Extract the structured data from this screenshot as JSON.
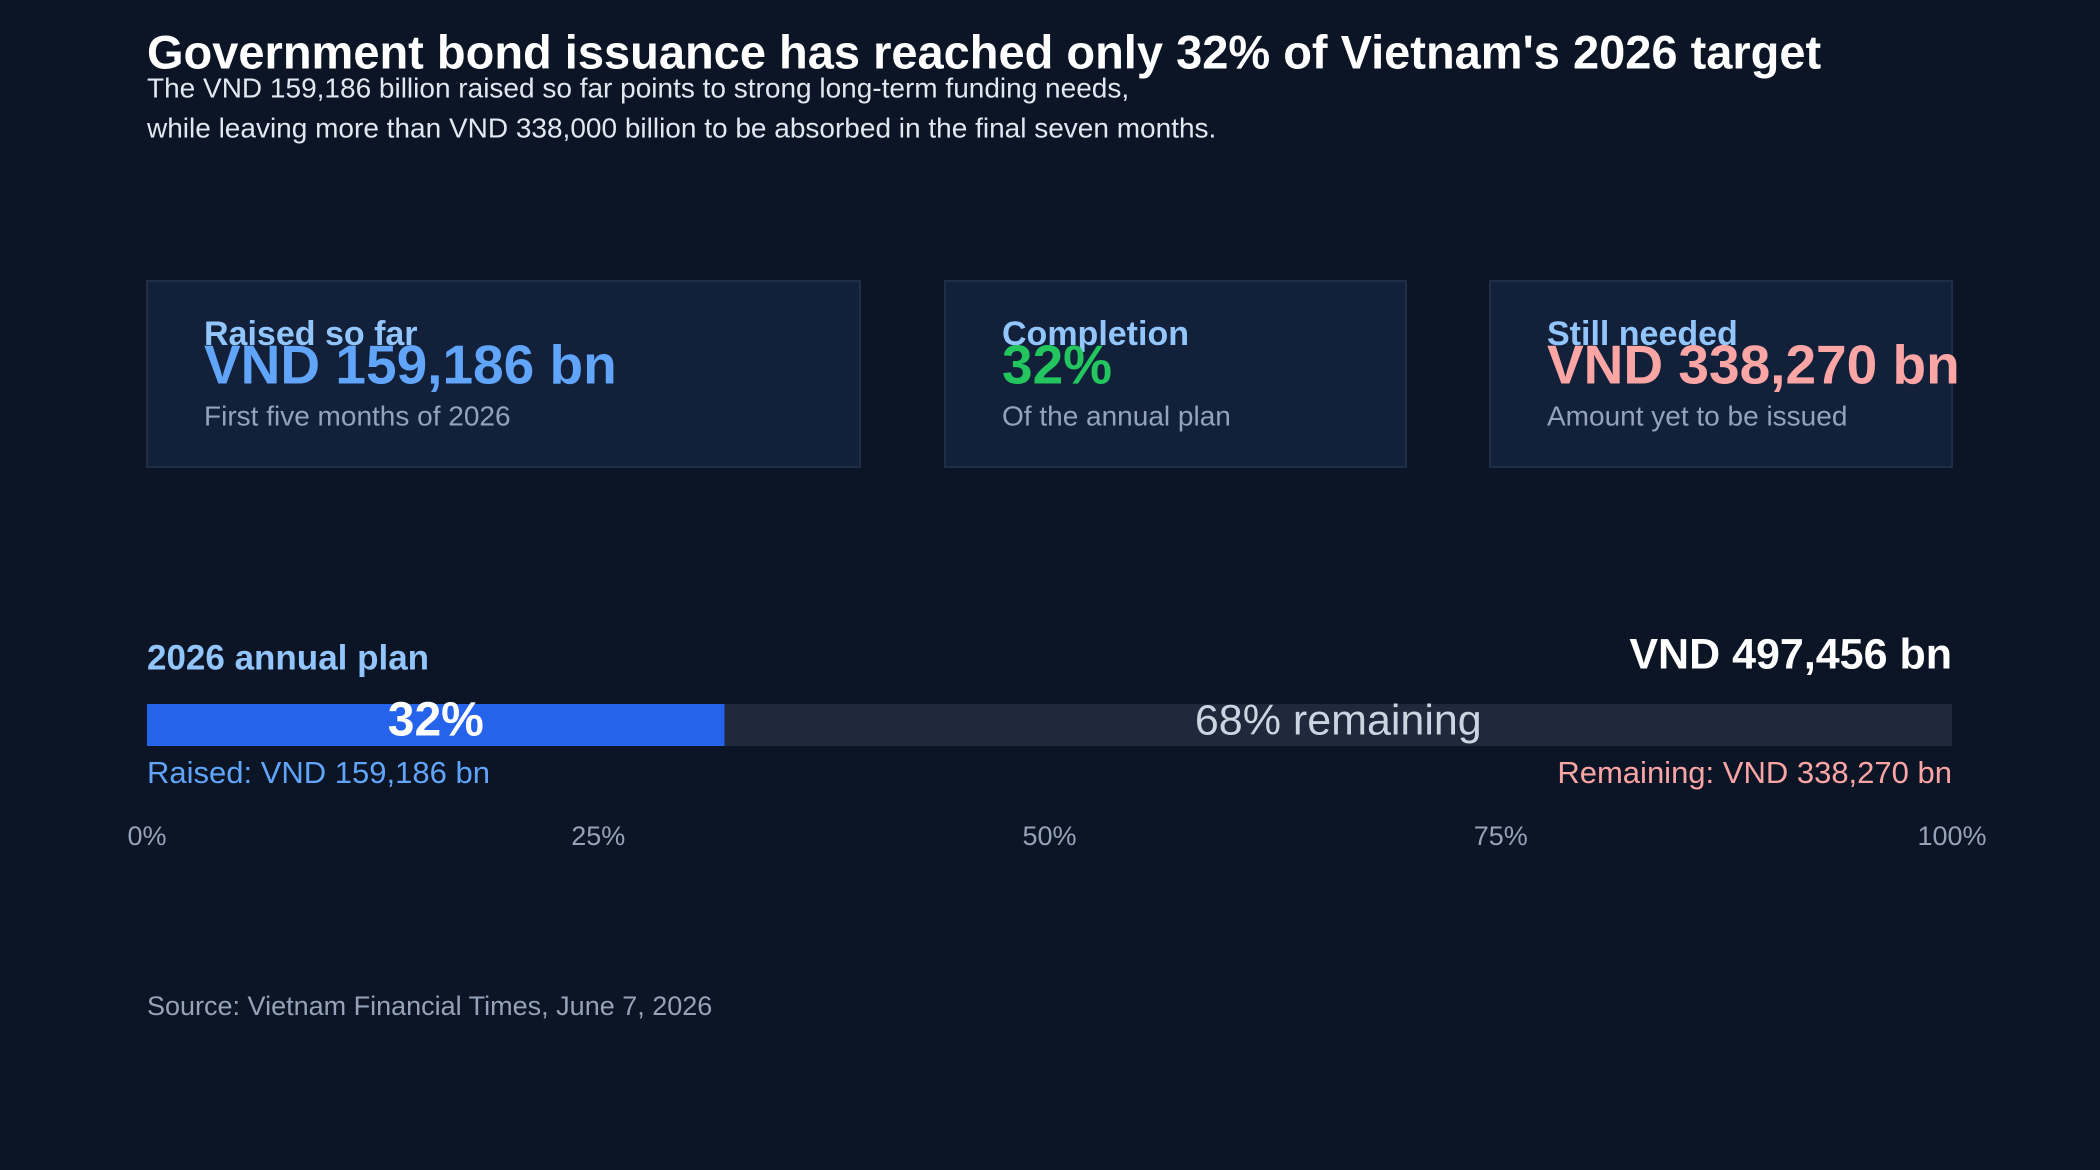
{
  "header": {
    "title": "Government bond issuance has reached only 32% of Vietnam's 2026 target",
    "subtitle": [
      "The VND 159,186 billion raised so far points to strong long-term funding needs,",
      "while leaving more than VND 338,000 billion to be absorbed in the final seven months."
    ]
  },
  "cards": [
    {
      "label": "Raised so far",
      "value": "VND 159,186 bn",
      "note": "First five months of 2026"
    },
    {
      "label": "Completion",
      "value": "32%",
      "note": "Of the annual plan"
    },
    {
      "label": "Still needed",
      "value": "VND 338,270 bn",
      "note": "Amount yet to be issued"
    }
  ],
  "chart_data": {
    "type": "progress",
    "title": "2026 annual plan",
    "total_label": "VND 497,456 bn",
    "series": [
      {
        "name": "Raised: VND 159,186 bn",
        "color": "#2563eb",
        "values": [
          32
        ],
        "value_labels": [
          "32%"
        ]
      },
      {
        "name": "Remaining: VND 338,270 bn",
        "color": "#1e293b",
        "values": [
          68
        ],
        "value_labels": [
          "68% remaining"
        ]
      }
    ],
    "xlim": [
      0,
      100
    ],
    "xticks": [
      {
        "value": 0,
        "label": "0%"
      },
      {
        "value": 25,
        "label": "25%"
      },
      {
        "value": 50,
        "label": "50%"
      },
      {
        "value": 75,
        "label": "75%"
      },
      {
        "value": 100,
        "label": "100%"
      }
    ]
  },
  "source": "Source: Vietnam Financial Times, June 7, 2026"
}
